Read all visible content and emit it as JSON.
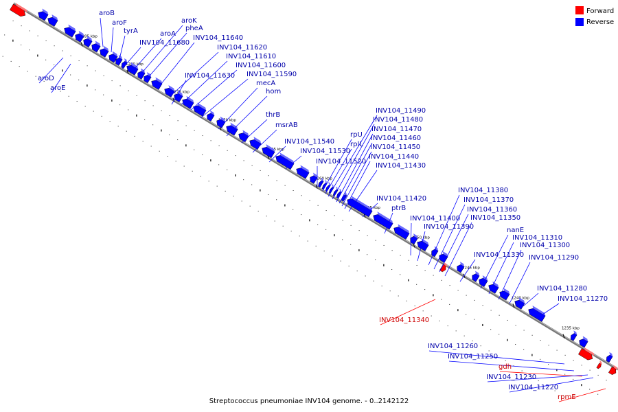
{
  "caption": "Streptococcus pneumoniae INV104 genome. - 0..2142122",
  "legend": [
    {
      "label": "Forward",
      "color": "#ff0000"
    },
    {
      "label": "Reverse",
      "color": "#0000ff"
    }
  ],
  "colors": {
    "forward": "#ff0000",
    "reverse": "#0000ff",
    "forward_label": "#cc0000",
    "reverse_label": "#0000aa",
    "axis": "#888888"
  },
  "tick_labels": [
    "1285 kbp",
    "1280 kbp",
    "1275 kbp",
    "1270 kbp",
    "1265 kbp",
    "1260 kbp",
    "1255 kbp",
    "1250 kbp",
    "1245 kbp",
    "1240 kbp",
    "1235 kbp"
  ],
  "gene_labels": [
    {
      "name": "aroB",
      "strand": "reverse"
    },
    {
      "name": "aroF",
      "strand": "reverse"
    },
    {
      "name": "tyrA",
      "strand": "reverse"
    },
    {
      "name": "aroA",
      "strand": "reverse"
    },
    {
      "name": "aroK",
      "strand": "reverse"
    },
    {
      "name": "pheA",
      "strand": "reverse"
    },
    {
      "name": "INV104_11680",
      "strand": "reverse"
    },
    {
      "name": "INV104_11640",
      "strand": "reverse"
    },
    {
      "name": "INV104_11620",
      "strand": "reverse"
    },
    {
      "name": "INV104_11610",
      "strand": "reverse"
    },
    {
      "name": "INV104_11600",
      "strand": "reverse"
    },
    {
      "name": "INV104_11630",
      "strand": "reverse"
    },
    {
      "name": "INV104_11590",
      "strand": "reverse"
    },
    {
      "name": "mecA",
      "strand": "reverse"
    },
    {
      "name": "hom",
      "strand": "reverse"
    },
    {
      "name": "aroD",
      "strand": "reverse"
    },
    {
      "name": "aroE",
      "strand": "reverse"
    },
    {
      "name": "thrB",
      "strand": "reverse"
    },
    {
      "name": "msrAB",
      "strand": "reverse"
    },
    {
      "name": "INV104_11540",
      "strand": "reverse"
    },
    {
      "name": "INV104_11530",
      "strand": "reverse"
    },
    {
      "name": "INV104_11520",
      "strand": "reverse"
    },
    {
      "name": "rpU",
      "strand": "reverse"
    },
    {
      "name": "rplL",
      "strand": "reverse"
    },
    {
      "name": "INV104_11490",
      "strand": "reverse"
    },
    {
      "name": "INV104_11480",
      "strand": "reverse"
    },
    {
      "name": "INV104_11470",
      "strand": "reverse"
    },
    {
      "name": "INV104_11460",
      "strand": "reverse"
    },
    {
      "name": "INV104_11450",
      "strand": "reverse"
    },
    {
      "name": "INV104_11440",
      "strand": "reverse"
    },
    {
      "name": "INV104_11430",
      "strand": "reverse"
    },
    {
      "name": "INV104_11420",
      "strand": "reverse"
    },
    {
      "name": "ptrB",
      "strand": "reverse"
    },
    {
      "name": "INV104_11400",
      "strand": "reverse"
    },
    {
      "name": "INV104_11390",
      "strand": "reverse"
    },
    {
      "name": "INV104_11380",
      "strand": "reverse"
    },
    {
      "name": "INV104_11370",
      "strand": "reverse"
    },
    {
      "name": "INV104_11360",
      "strand": "reverse"
    },
    {
      "name": "INV104_11350",
      "strand": "reverse"
    },
    {
      "name": "nanE",
      "strand": "reverse"
    },
    {
      "name": "INV104_11310",
      "strand": "reverse"
    },
    {
      "name": "INV104_11300",
      "strand": "reverse"
    },
    {
      "name": "INV104_11330",
      "strand": "reverse"
    },
    {
      "name": "INV104_11290",
      "strand": "reverse"
    },
    {
      "name": "INV104_11340",
      "strand": "forward"
    },
    {
      "name": "INV104_11280",
      "strand": "reverse"
    },
    {
      "name": "INV104_11270",
      "strand": "reverse"
    },
    {
      "name": "INV104_11260",
      "strand": "reverse"
    },
    {
      "name": "INV104_11250",
      "strand": "reverse"
    },
    {
      "name": "gdh",
      "strand": "forward"
    },
    {
      "name": "INV104_11230",
      "strand": "reverse"
    },
    {
      "name": "INV104_11220",
      "strand": "reverse"
    },
    {
      "name": "rpmE",
      "strand": "forward"
    }
  ]
}
